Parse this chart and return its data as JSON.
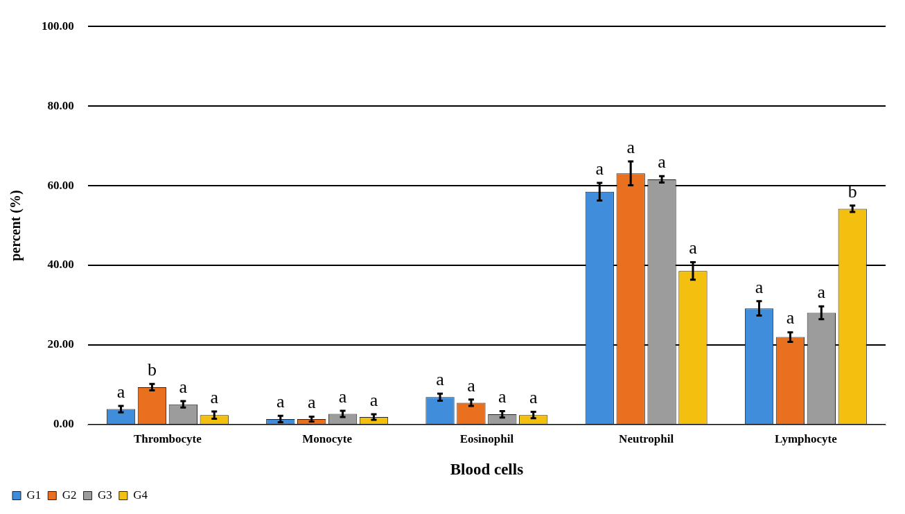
{
  "chart_data": {
    "type": "bar",
    "xlabel": "Blood cells",
    "ylabel": "percent (%)",
    "categories": [
      "Thrombocyte",
      "Monocyte",
      "Eosinophil",
      "Neutrophil",
      "Lymphocyte"
    ],
    "series": [
      {
        "name": "G1",
        "color": "#3f8ddb",
        "values": [
          3.9,
          1.4,
          6.9,
          58.5,
          29.2
        ],
        "errors": [
          0.8,
          0.8,
          0.9,
          2.2,
          1.8
        ],
        "value_labels": [
          "a",
          "a",
          "a",
          "a",
          "a"
        ]
      },
      {
        "name": "G2",
        "color": "#e8701e",
        "values": [
          9.4,
          1.4,
          5.5,
          63.1,
          22.0
        ],
        "errors": [
          0.8,
          0.6,
          0.8,
          3.0,
          1.2
        ],
        "value_labels": [
          "b",
          "a",
          "a",
          "a",
          "a"
        ]
      },
      {
        "name": "G3",
        "color": "#9c9c9c",
        "values": [
          5.1,
          2.7,
          2.6,
          61.6,
          28.1
        ],
        "errors": [
          0.8,
          0.8,
          0.8,
          0.8,
          1.6
        ],
        "value_labels": [
          "a",
          "a",
          "a",
          "a",
          "a"
        ]
      },
      {
        "name": "G4",
        "color": "#f4c010",
        "values": [
          2.4,
          1.9,
          2.4,
          38.6,
          54.2
        ],
        "errors": [
          0.9,
          0.7,
          0.8,
          2.2,
          0.8
        ],
        "value_labels": [
          "a",
          "a",
          "a",
          "a",
          "b"
        ]
      }
    ],
    "ylim": [
      0,
      100
    ],
    "yticks": [
      {
        "value": 0,
        "label": "0.00"
      },
      {
        "value": 20,
        "label": "20.00"
      },
      {
        "value": 40,
        "label": "40.00"
      },
      {
        "value": 60,
        "label": "60.00"
      },
      {
        "value": 80,
        "label": "80.00"
      },
      {
        "value": 100,
        "label": "100.00"
      }
    ],
    "grid": "y",
    "legend": "bottom left"
  }
}
